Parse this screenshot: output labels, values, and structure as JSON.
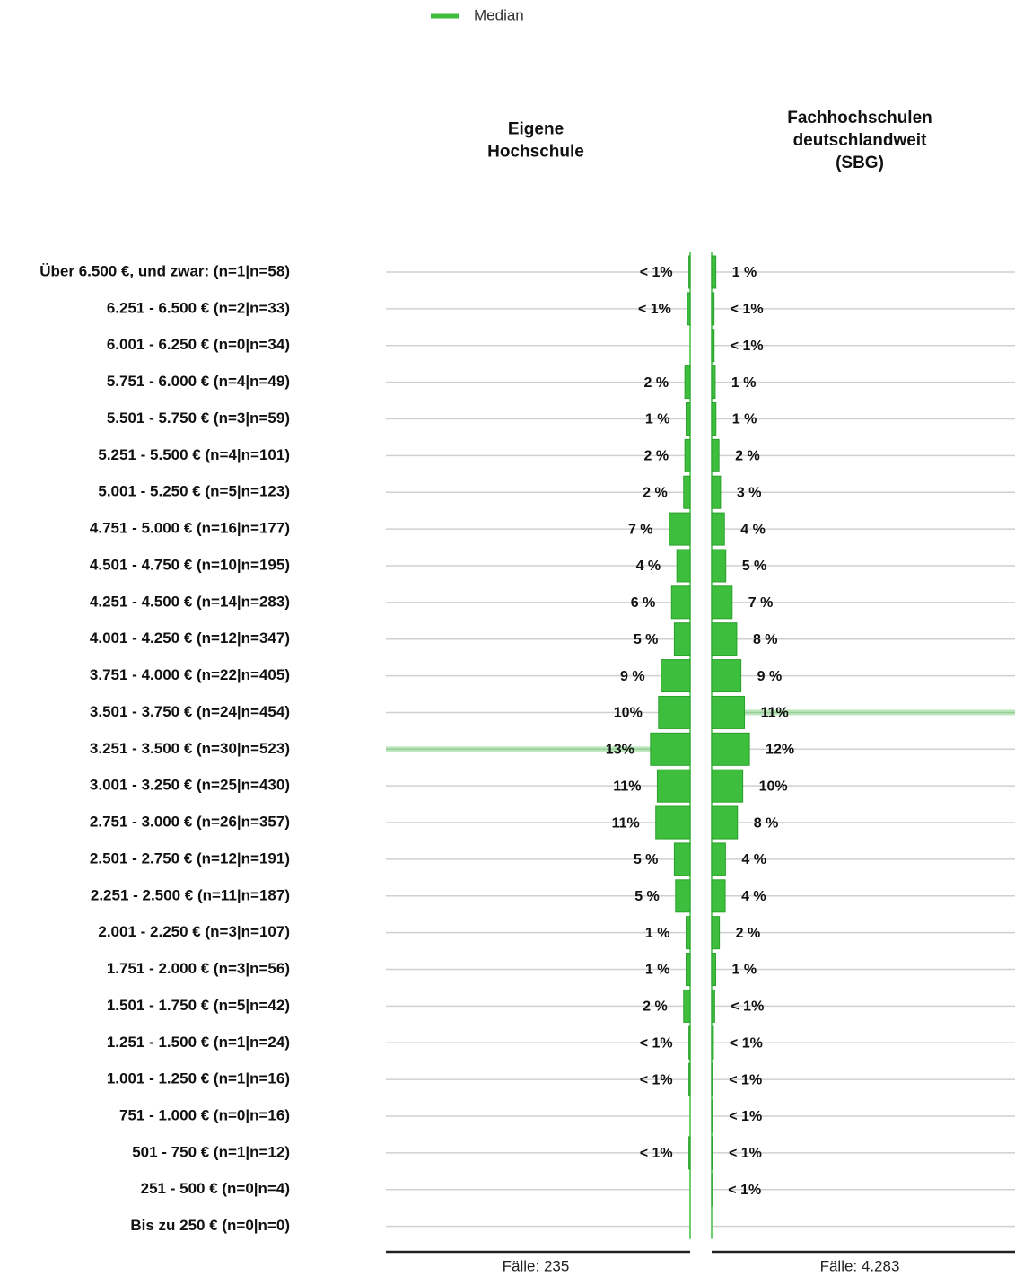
{
  "chart_data": {
    "type": "butterfly",
    "legend": "Median",
    "median_color": "#3dbf3d",
    "categories": [
      "Über 6.500 €, und zwar: (n=1|n=58)",
      "6.251 - 6.500 € (n=2|n=33)",
      "6.001 - 6.250 € (n=0|n=34)",
      "5.751 - 6.000 € (n=4|n=49)",
      "5.501 - 5.750 € (n=3|n=59)",
      "5.251 - 5.500 € (n=4|n=101)",
      "5.001 - 5.250 € (n=5|n=123)",
      "4.751 - 5.000 € (n=16|n=177)",
      "4.501 - 4.750 € (n=10|n=195)",
      "4.251 - 4.500 € (n=14|n=283)",
      "4.001 - 4.250 € (n=12|n=347)",
      "3.751 - 4.000 € (n=22|n=405)",
      "3.501 - 3.750 € (n=24|n=454)",
      "3.251 - 3.500 € (n=30|n=523)",
      "3.001 - 3.250 € (n=25|n=430)",
      "2.751 - 3.000 € (n=26|n=357)",
      "2.501 - 2.750 € (n=12|n=191)",
      "2.251 - 2.500 € (n=11|n=187)",
      "2.001 - 2.250 € (n=3|n=107)",
      "1.751 - 2.000 € (n=3|n=56)",
      "1.501 - 1.750 € (n=5|n=42)",
      "1.251 - 1.500 € (n=1|n=24)",
      "1.001 - 1.250 € (n=1|n=16)",
      "751 - 1.000 € (n=0|n=16)",
      "501 - 750 € (n=1|n=12)",
      "251 - 500 € (n=0|n=4)",
      "Bis zu 250 € (n=0|n=0)"
    ],
    "series": [
      {
        "name": "Eigene Hochschule",
        "color": "#3dbf3d",
        "footer": "Fälle: 235",
        "median": "3.251 - 3.500 € (n=30|n=523)",
        "values": [
          0.4,
          0.9,
          0,
          1.7,
          1.3,
          1.7,
          2.1,
          6.8,
          4.3,
          6.0,
          5.1,
          9.4,
          10.2,
          12.8,
          10.6,
          11.1,
          5.1,
          4.7,
          1.3,
          1.3,
          2.1,
          0.4,
          0.4,
          0,
          0.4,
          0,
          0
        ],
        "value_labels": [
          "< 1%",
          "< 1%",
          null,
          "2 %",
          "1 %",
          "2 %",
          "2 %",
          "7 %",
          "4 %",
          "6 %",
          "5 %",
          "9 %",
          "10%",
          "13%",
          "11%",
          "11%",
          "5 %",
          "5 %",
          "1 %",
          "1 %",
          "2 %",
          "< 1%",
          "< 1%",
          null,
          "< 1%",
          null,
          null
        ]
      },
      {
        "name": "Fachhochschulen deutschlandweit (SBG)",
        "color": "#3dbf3d",
        "footer": "Fälle: 4.283",
        "median": "3.501 - 3.750 € (n=24|n=454)",
        "values": [
          1.35,
          0.77,
          0.79,
          1.14,
          1.38,
          2.36,
          2.87,
          4.13,
          4.55,
          6.61,
          8.1,
          9.46,
          10.6,
          12.21,
          10.04,
          8.34,
          4.46,
          4.37,
          2.5,
          1.31,
          0.98,
          0.56,
          0.37,
          0.37,
          0.28,
          0.09,
          0
        ],
        "value_labels": [
          "1 %",
          "< 1%",
          "< 1%",
          "1 %",
          "1 %",
          "2 %",
          "3 %",
          "4 %",
          "5 %",
          "7 %",
          "8 %",
          "9 %",
          "11%",
          "12%",
          "10%",
          "8 %",
          "4 %",
          "4 %",
          "2 %",
          "1 %",
          "< 1%",
          "< 1%",
          "< 1%",
          "< 1%",
          "< 1%",
          "< 1%",
          null
        ]
      }
    ]
  }
}
